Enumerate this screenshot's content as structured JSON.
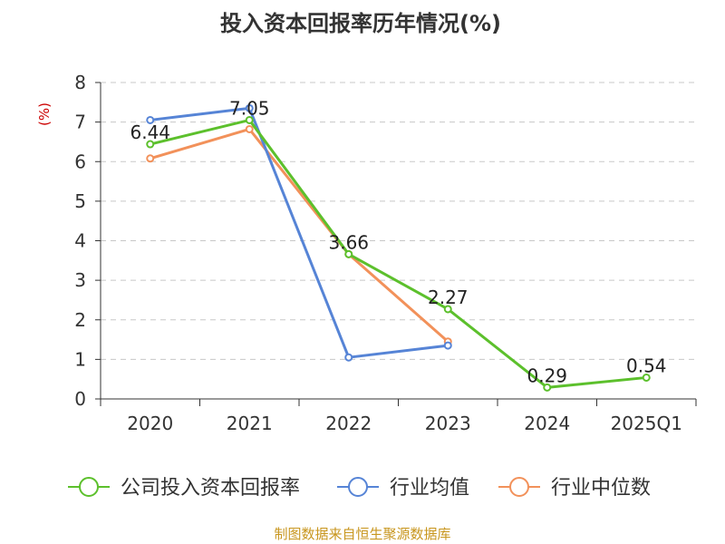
{
  "chart_data": {
    "type": "line",
    "title": "投入资本回报率历年情况(%)",
    "ylabel": "(%)",
    "xlabel": "",
    "categories": [
      "2020",
      "2021",
      "2022",
      "2023",
      "2024",
      "2025Q1"
    ],
    "ylim": [
      0,
      8
    ],
    "yticks": [
      "0",
      "1",
      "2",
      "3",
      "4",
      "5",
      "6",
      "7",
      "8"
    ],
    "grid": true,
    "legend_position": "bottom",
    "series": [
      {
        "name": "公司投入资本回报率",
        "color": "#5cc02c",
        "values": [
          6.44,
          7.05,
          3.66,
          2.27,
          0.29,
          0.54
        ],
        "labels": [
          "6.44",
          "7.05",
          "3.66",
          "2.27",
          "0.29",
          "0.54"
        ]
      },
      {
        "name": "行业均值",
        "color": "#5684d6",
        "values": [
          7.05,
          7.35,
          1.05,
          1.35,
          null,
          null
        ]
      },
      {
        "name": "行业中位数",
        "color": "#f2915a",
        "values": [
          6.08,
          6.82,
          3.66,
          1.45,
          null,
          null
        ]
      }
    ],
    "source": "制图数据来自恒生聚源数据库"
  }
}
